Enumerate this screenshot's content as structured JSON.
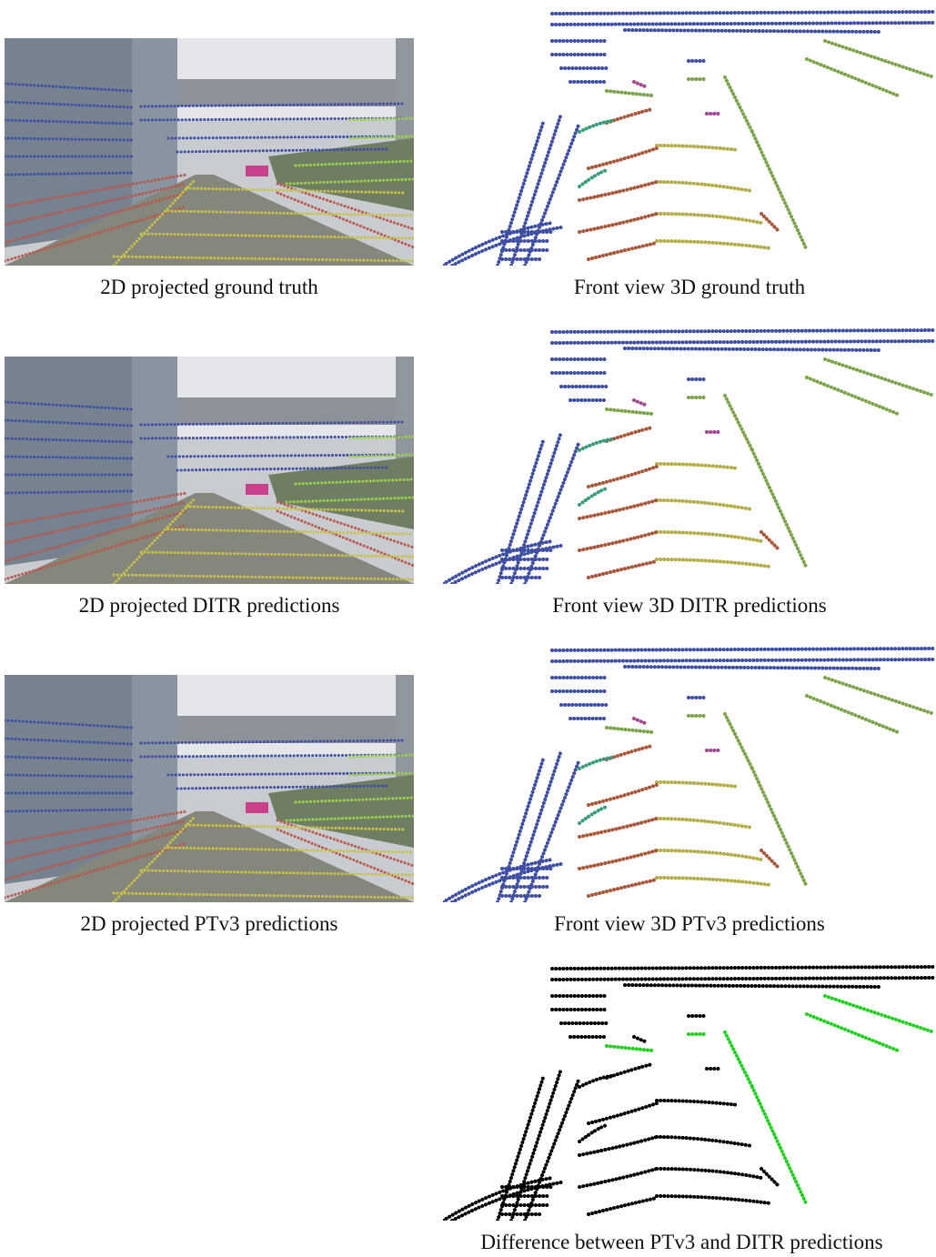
{
  "figure": {
    "captions": [
      "2D projected ground truth",
      "Front view 3D ground truth",
      "2D projected DITR predictions",
      "Front view 3D DITR predictions",
      "2D projected PTv3 predictions",
      "Front view 3D PTv3 predictions",
      "Difference between PTv3 and DITR predictions"
    ]
  }
}
